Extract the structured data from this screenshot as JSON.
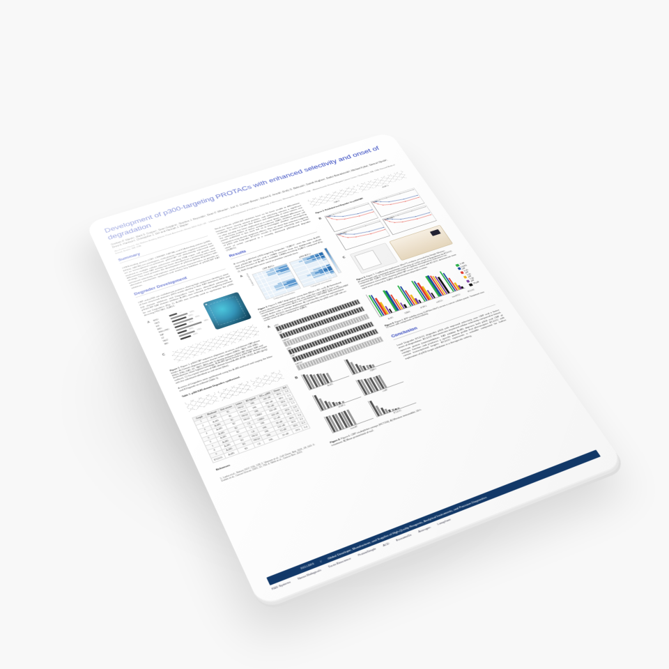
{
  "title": "Development of p300-targeting PROTACs with enhanced selectivity and onset of degradation",
  "authors": "Graham P. Marsh¹, Mark S. Cooper¹, Sean Goggins¹, Stephen J. Reynolds¹, Dean F. Wheeler¹, Joel O. Cresser-Brown¹, Robert E. Arnold¹, Emily G. Babcock², Gareth Hughes¹, Darko Bosnakovski², Michael Kyba², Samuel Ojeda³, Drew A. Harrison³, Christopher J. Ott³ and Hannah J. Maple¹",
  "affiliations": "¹Bio-Techne (Tocris), The Watkins Building, Atlantic Road, Avonmouth, Bristol, BS11 9QD, UK · ²Lillehei Heart Institute and Department of Pediatrics, University of Minnesota, Minneapolis, MN 55455, USA · ³Massachusetts General Hospital Cancer Center, Charlestown, MA, USA; Harvard Medical School, Boston, MA, USA",
  "sections": {
    "summary": "Summary",
    "summary_body": "CREB-binding protein (CBP, CREBBP, KAT3A) and E1A-binding protein (p300, EP300, KAT3B) are paralogous, multi-domain epigenetic regulator proteins that act as transcriptional co-activators. p300/CBP are ubiquitously expressed and involved in multiple cellular processes including DNA repair, cell growth, and differentiation; their KAT activity has been described as a promising anti-cancer strategy. This work presents the development of p300-targeting degraders with enhanced selectivity, and explores onset-of-action characteristics, to provide an alternative mechanistic approach and resolve key liabilities of p300/CBP KAT inhibitors.",
    "intro_right": "Small molecule p300/CBP inhibitors have so far been unable to differentiate between these closely related proteins, and selectivity remains a significant challenge. In order to probe their distinct and additionally, in some tumors, one or other paralog has been implicated as a cancer driver. Marked differences in the selectivity profiles of lysine acetyltransferase (KAT) inhibitors across cell panels published in this work led us to investigate whether cyclin-targeting Degraders may de-risk apoptosis effects. Here we show that selective targeting of p300 with Degrader BT-DOC results in improved selectivity and a faster onset of action compared to a recently disclosed p300-based degrader (JQAD1).",
    "degrader_dev": "Degrader Development",
    "degrader_body": "CBP and p300 are multidomain proteins sharing high sequence identity in most of their structured domains (98% inside identity in their KAT domains). BRD and KIX domain inhibitors and Degraders have been described previously. A p300/CBP KAT domain inhibitor, A-485, was selected as the targeting warhead for our Degraders (Fig. 1). A-485 was recently used to synthesize the p300-directing PROTAC JQAD1.",
    "results": "Results",
    "results_body": "A recently published p300-targeting Degrader \"JQAD1\" uses the same A-485 dual p300/CBP binder, and a CRBN recruiter from the thalidomide scaffold. Relative kinetics of A-485 to available CRBN-recruiting JQAD1 compared (Fig. 2). Both Degraders were used as positive controls here.",
    "conclusion": "Conclusion",
    "conclusion_body": "Lead Degrader BT-DOC degrades p300 with improved selectivity over CBP and a faster onset of degradation. BT-DOC demonstrates improved cellular selectivity compared to broad-spectrum protein (mono)inhibition. KAT inhibitor A-485 deprives both p300 and CBP of catalytic function and produces a specific protein profile that phenocopies BT-DOC with certain transcriptional targets. BT-DOC represents a valuable compound for further exploration of p300 target validation in a therapeutic setting.",
    "references": "References"
  },
  "fig1_cap": "Figure 1. p300/CBP sequence alignment, structure, and domain KAT phase binder. A) Domain alignment across shorter active regions (NRID, TAZ1, KIX, BRD, RING, PHD, KAT, ZZ, TAZ2, IBiD) with % identity between p300/CBP shown; KAT and bromodomain share highest homology. B) A-485 (grey) bound in p300 KAT domain (cyan surface). C) Co-crystal structure of KAT-domain bound A-485 (PDB: 5KJ2). A-485 (grey) with the substituent identified as exit vector (blue).",
  "domains": [
    {
      "name": "NRID",
      "len": 12,
      "id": "—"
    },
    {
      "name": "TAZ1",
      "len": 26,
      "id": "69%"
    },
    {
      "name": "KIX",
      "len": 22,
      "id": "66%"
    },
    {
      "name": "BRD",
      "len": 30,
      "id": "95%"
    },
    {
      "name": "RING-PHD",
      "len": 18,
      "id": "91%"
    },
    {
      "name": "KAT",
      "len": 40,
      "id": "98%"
    },
    {
      "name": "ZZ",
      "len": 14,
      "id": "89%"
    },
    {
      "name": "TAZ2",
      "len": 24,
      "id": "78%"
    },
    {
      "name": "IBiD",
      "len": 16,
      "id": "63%"
    }
  ],
  "table1_title": "Table 1. p300 KAT-domain Degraders synthesised.",
  "table1": {
    "cols": [
      "Cmpd",
      "Warhead",
      "Exit vector",
      "Linker",
      "E3 ligand",
      "DC₅₀ p300",
      "Dmax",
      "Sel."
    ],
    "rows": [
      [
        "1",
        "A-485",
        "R1",
        "PEG2",
        "VHL",
        "240 nM",
        "85%",
        "1.4"
      ],
      [
        "2",
        "A-485",
        "R1",
        "PEG3",
        "VHL",
        "180 nM",
        "88%",
        "2.1"
      ],
      [
        "3",
        "A-485",
        "R1",
        "PEG4",
        "VHL",
        "95 nM",
        "92%",
        "3.6"
      ],
      [
        "4",
        "A-485",
        "R2",
        "PEG3",
        "CRBN",
        "310 nM",
        "71%",
        "1.1"
      ],
      [
        "5",
        "A-485",
        "R2",
        "C4",
        "CRBN",
        "420 nM",
        "62%",
        "0.9"
      ],
      [
        "6",
        "A-485",
        "R2",
        "C6",
        "VHL",
        "55 nM",
        "94%",
        "5.8"
      ],
      [
        "7",
        "A-485",
        "R2",
        "C8",
        "VHL",
        "38 nM",
        "96%",
        "7.3"
      ],
      [
        "8",
        "A-485",
        "R3",
        "PEG2",
        "VHL",
        "120 nM",
        "90%",
        "4.0"
      ],
      [
        "9",
        "A-485",
        "R3",
        "PEG4",
        "VHL",
        "71 nM",
        "93%",
        "6.1"
      ],
      [
        "BT-DOC",
        "A-485",
        "R3",
        "C6",
        "VHL",
        "29 nM",
        "97%",
        "9.4"
      ]
    ]
  },
  "fig2_cap": "Figure 2. Published tool Degrader for p300/CBP.",
  "chem_names": [
    "JQAD1",
    "dCBP-1"
  ],
  "heat_titles": [
    "CBP AUCs",
    "p300 AUCs"
  ],
  "heat_xlabel": "Compound concentration",
  "heat_ylabel": "Compound / cell line",
  "fig3_cap": "Figure 3. HiBiT degradation assay data (Mean ± SD; n=3). A) Normalized protein abundance is represented as the area under the curve (AUC) over a six-concentration treatment series. AUCs are calculated for CBP-HiBiT (left) and p300-HiBiT (right); darker color = stronger depletion. B) Cell-TiterGlo curves for representative compounds. BT-DOC demonstrates improved selectivity for p300 over CBP with an earlier onset of effect compared to JQAD1.",
  "fig4_cap": "Figure 4. CBP co-depletion assays (HCT116). A) Western immunoblot, 24 h treatment. B) Mean protein/total of n=2.",
  "fig5_cap": "Figure 5. Capillary electrophoresis (Wes™) analysis, preceded by Simple Western (ProteinSimple) with automated quantitation confirming an earlier onset of degradation by BT-DOC compared with JQAD1. C) Schematic and image of capillary electrophoresis instrument run; representative immunoblots showing p300/CBP across time course with BT-DOC demonstrate more rapid onset compared to JQAD1 and proteasome-dependent action.",
  "fig6_cap": "Figure 6. ATP viability assay (CellTiter-Glo®) across a cancer cell-line panel. Treatment was 72 hours with compounds at fixed molarity.",
  "legend": [
    {
      "label": "0 nM",
      "color": "#2cb34a"
    },
    {
      "label": "0.0411 μM",
      "color": "#1f4aa0"
    },
    {
      "label": "0.41 μM",
      "color": "#e43b2f"
    },
    {
      "label": "1.41 μM",
      "color": "#f2b91d"
    },
    {
      "label": "7.36 μM",
      "color": "#7a3fa3"
    },
    {
      "label": "29 μM",
      "color": "#111111"
    }
  ],
  "grouped_cats": [
    "A-485",
    "JQAD1",
    "dCBP-1",
    "cisBT-D",
    "transBT-D",
    "BT-DOC"
  ],
  "grouped_vals": [
    [
      100,
      96,
      78,
      55,
      32,
      18
    ],
    [
      100,
      94,
      72,
      47,
      26,
      14
    ],
    [
      100,
      92,
      70,
      44,
      23,
      12
    ],
    [
      100,
      95,
      82,
      62,
      40,
      24
    ],
    [
      100,
      98,
      95,
      90,
      85,
      78
    ],
    [
      100,
      88,
      60,
      34,
      16,
      8
    ]
  ],
  "linecharts": {
    "labelA": "B",
    "titles": [
      "CBP",
      "p300",
      "CBP-HiBiT",
      "p300-HiBiT"
    ],
    "xlabel": "Time (h)",
    "series": [
      {
        "name": "BT-DOC",
        "color": "#e43b2f",
        "pts": [
          [
            0,
            1.0
          ],
          [
            2,
            0.7
          ],
          [
            4,
            0.5
          ],
          [
            8,
            0.35
          ],
          [
            16,
            0.22
          ],
          [
            24,
            0.2
          ]
        ]
      },
      {
        "name": "JQAD1",
        "color": "#1f4aa0",
        "pts": [
          [
            0,
            1.0
          ],
          [
            2,
            0.95
          ],
          [
            4,
            0.82
          ],
          [
            8,
            0.6
          ],
          [
            16,
            0.44
          ],
          [
            24,
            0.4
          ]
        ]
      },
      {
        "name": "DMSO",
        "color": "#888888",
        "pts": [
          [
            0,
            1.0
          ],
          [
            2,
            1.0
          ],
          [
            4,
            0.99
          ],
          [
            8,
            0.98
          ],
          [
            16,
            0.97
          ],
          [
            24,
            0.96
          ]
        ]
      }
    ]
  },
  "western_rowlabels": [
    "p300",
    "CBP",
    "GAPDH"
  ],
  "barmini_labels": [
    "A-485",
    "JQAD1",
    "dCBP-1",
    "cisBT",
    "transBT",
    "BT-DOC"
  ],
  "barmini_vals": [
    [
      100,
      92,
      85,
      80,
      74,
      70,
      65,
      60
    ],
    [
      100,
      75,
      55,
      40,
      30,
      24,
      20,
      18
    ],
    [
      100,
      70,
      48,
      34,
      24,
      18,
      14,
      12
    ],
    [
      100,
      96,
      93,
      90,
      88,
      86,
      85,
      84
    ],
    [
      100,
      99,
      98,
      98,
      97,
      97,
      96,
      96
    ],
    [
      100,
      60,
      38,
      24,
      16,
      11,
      8,
      6
    ]
  ],
  "footer_tag": "Global Developer, Manufacturer, and Supplier of High-Quality Reagents, Analytical Instruments, and Precision Diagnostics",
  "brand": "bio-techne",
  "brand_sub": "INCLUDES",
  "brands": [
    "R&D Systems",
    "Novus Biologicals",
    "Tocris Bioscience",
    "ProteinSimple",
    "ACD",
    "ExosomeDx",
    "Asuragen",
    "Lunaphore"
  ]
}
